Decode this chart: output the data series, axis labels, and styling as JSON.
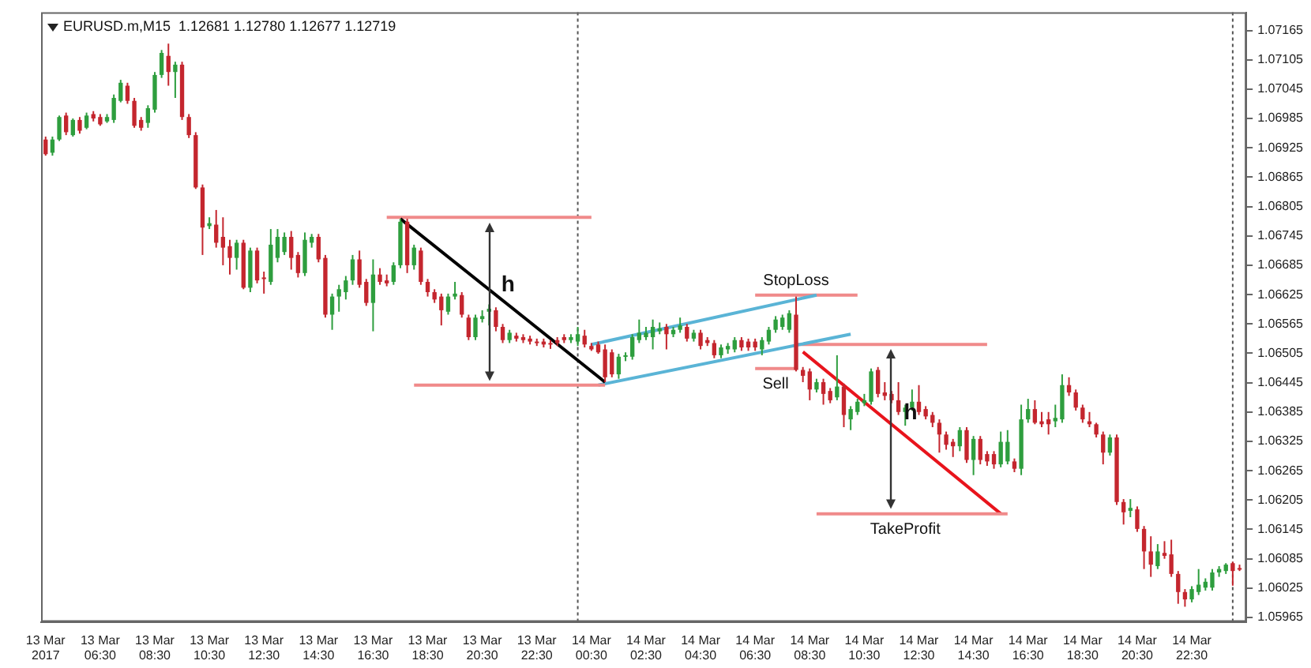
{
  "chart_data": {
    "type": "candlestick",
    "title": "EURUSD.m,M15  1.12681 1.12780 1.12677 1.12719",
    "x": [
      "2017-03-13T04:30",
      "2017-03-13T04:45",
      "2017-03-13T05:00",
      "2017-03-13T05:15",
      "2017-03-13T05:30",
      "2017-03-13T05:45",
      "2017-03-13T06:00",
      "2017-03-13T06:15",
      "2017-03-13T06:30",
      "2017-03-13T06:45",
      "2017-03-13T07:00",
      "2017-03-13T07:15",
      "2017-03-13T07:30",
      "2017-03-13T07:45",
      "2017-03-13T08:00",
      "2017-03-13T08:15",
      "2017-03-13T08:30",
      "2017-03-13T08:45",
      "2017-03-13T09:00",
      "2017-03-13T09:15",
      "2017-03-13T09:30",
      "2017-03-13T09:45",
      "2017-03-13T10:00",
      "2017-03-13T10:15",
      "2017-03-13T10:30",
      "2017-03-13T10:45",
      "2017-03-13T11:00",
      "2017-03-13T11:15",
      "2017-03-13T11:30",
      "2017-03-13T11:45",
      "2017-03-13T12:00",
      "2017-03-13T12:15",
      "2017-03-13T12:30",
      "2017-03-13T12:45",
      "2017-03-13T13:00",
      "2017-03-13T13:15",
      "2017-03-13T13:30",
      "2017-03-13T13:45",
      "2017-03-13T14:00",
      "2017-03-13T14:15",
      "2017-03-13T14:30",
      "2017-03-13T14:45",
      "2017-03-13T15:00",
      "2017-03-13T15:15",
      "2017-03-13T15:30",
      "2017-03-13T15:45",
      "2017-03-13T16:00",
      "2017-03-13T16:15",
      "2017-03-13T16:30",
      "2017-03-13T16:45",
      "2017-03-13T17:00",
      "2017-03-13T17:15",
      "2017-03-13T17:30",
      "2017-03-13T17:45",
      "2017-03-13T18:00",
      "2017-03-13T18:15",
      "2017-03-13T18:30",
      "2017-03-13T18:45",
      "2017-03-13T19:00",
      "2017-03-13T19:15",
      "2017-03-13T19:30",
      "2017-03-13T19:45",
      "2017-03-13T20:00",
      "2017-03-13T20:15",
      "2017-03-13T20:30",
      "2017-03-13T20:45",
      "2017-03-13T21:00",
      "2017-03-13T21:15",
      "2017-03-13T21:30",
      "2017-03-13T21:45",
      "2017-03-13T22:00",
      "2017-03-13T22:15",
      "2017-03-13T22:30",
      "2017-03-13T22:45",
      "2017-03-13T23:00",
      "2017-03-13T23:15",
      "2017-03-13T23:30",
      "2017-03-13T23:45",
      "2017-03-14T00:00",
      "2017-03-14T00:15",
      "2017-03-14T00:30",
      "2017-03-14T00:45",
      "2017-03-14T01:00",
      "2017-03-14T01:15",
      "2017-03-14T01:30",
      "2017-03-14T01:45",
      "2017-03-14T02:00",
      "2017-03-14T02:15",
      "2017-03-14T02:30",
      "2017-03-14T02:45",
      "2017-03-14T03:00",
      "2017-03-14T03:15",
      "2017-03-14T03:30",
      "2017-03-14T03:45",
      "2017-03-14T04:00",
      "2017-03-14T04:15",
      "2017-03-14T04:30",
      "2017-03-14T04:45",
      "2017-03-14T05:00",
      "2017-03-14T05:15",
      "2017-03-14T05:30",
      "2017-03-14T05:45",
      "2017-03-14T06:00",
      "2017-03-14T06:15",
      "2017-03-14T06:30",
      "2017-03-14T06:45",
      "2017-03-14T07:00",
      "2017-03-14T07:15",
      "2017-03-14T07:30",
      "2017-03-14T07:45",
      "2017-03-14T08:00",
      "2017-03-14T08:15",
      "2017-03-14T08:30",
      "2017-03-14T08:45",
      "2017-03-14T09:00",
      "2017-03-14T09:15",
      "2017-03-14T09:30",
      "2017-03-14T09:45",
      "2017-03-14T10:00",
      "2017-03-14T10:15",
      "2017-03-14T10:30",
      "2017-03-14T10:45",
      "2017-03-14T11:00",
      "2017-03-14T11:15",
      "2017-03-14T11:30",
      "2017-03-14T11:45",
      "2017-03-14T12:00",
      "2017-03-14T12:15",
      "2017-03-14T12:30",
      "2017-03-14T12:45",
      "2017-03-14T13:00",
      "2017-03-14T13:15",
      "2017-03-14T13:30",
      "2017-03-14T13:45",
      "2017-03-14T14:00",
      "2017-03-14T14:15",
      "2017-03-14T14:30",
      "2017-03-14T14:45",
      "2017-03-14T15:00",
      "2017-03-14T15:15",
      "2017-03-14T15:30",
      "2017-03-14T15:45",
      "2017-03-14T16:00",
      "2017-03-14T16:15",
      "2017-03-14T16:30",
      "2017-03-14T16:45",
      "2017-03-14T17:00",
      "2017-03-14T17:15",
      "2017-03-14T17:30",
      "2017-03-14T17:45",
      "2017-03-14T18:00",
      "2017-03-14T18:15",
      "2017-03-14T18:30",
      "2017-03-14T18:45",
      "2017-03-14T19:00",
      "2017-03-14T19:15",
      "2017-03-14T19:30",
      "2017-03-14T19:45",
      "2017-03-14T20:00",
      "2017-03-14T20:15",
      "2017-03-14T20:30",
      "2017-03-14T20:45",
      "2017-03-14T21:00",
      "2017-03-14T21:15",
      "2017-03-14T21:30",
      "2017-03-14T21:45",
      "2017-03-14T22:00",
      "2017-03-14T22:15",
      "2017-03-14T22:30",
      "2017-03-14T22:45",
      "2017-03-14T23:00",
      "2017-03-14T23:15",
      "2017-03-14T23:30",
      "2017-03-14T23:45",
      "2017-03-15T00:00",
      "2017-03-15T00:15"
    ],
    "xlim": [
      "2017-03-13T04:20",
      "2017-03-15T00:30"
    ],
    "xticks": [
      {
        "value": "2017-03-13T04:30",
        "label": "13 Mar 2017"
      },
      {
        "value": "2017-03-13T06:30",
        "label": "13 Mar 06:30"
      },
      {
        "value": "2017-03-13T08:30",
        "label": "13 Mar 08:30"
      },
      {
        "value": "2017-03-13T10:30",
        "label": "13 Mar 10:30"
      },
      {
        "value": "2017-03-13T12:30",
        "label": "13 Mar 12:30"
      },
      {
        "value": "2017-03-13T14:30",
        "label": "13 Mar 14:30"
      },
      {
        "value": "2017-03-13T16:30",
        "label": "13 Mar 16:30"
      },
      {
        "value": "2017-03-13T18:30",
        "label": "13 Mar 18:30"
      },
      {
        "value": "2017-03-13T20:30",
        "label": "13 Mar 20:30"
      },
      {
        "value": "2017-03-13T22:30",
        "label": "13 Mar 22:30"
      },
      {
        "value": "2017-03-14T00:30",
        "label": "14 Mar 00:30"
      },
      {
        "value": "2017-03-14T02:30",
        "label": "14 Mar 02:30"
      },
      {
        "value": "2017-03-14T04:30",
        "label": "14 Mar 04:30"
      },
      {
        "value": "2017-03-14T06:30",
        "label": "14 Mar 06:30"
      },
      {
        "value": "2017-03-14T08:30",
        "label": "14 Mar 08:30"
      },
      {
        "value": "2017-03-14T10:30",
        "label": "14 Mar 10:30"
      },
      {
        "value": "2017-03-14T12:30",
        "label": "14 Mar 12:30"
      },
      {
        "value": "2017-03-14T14:30",
        "label": "14 Mar 14:30"
      },
      {
        "value": "2017-03-14T16:30",
        "label": "14 Mar 16:30"
      },
      {
        "value": "2017-03-14T18:30",
        "label": "14 Mar 18:30"
      },
      {
        "value": "2017-03-14T20:30",
        "label": "14 Mar 20:30"
      },
      {
        "value": "2017-03-14T22:30",
        "label": "14 Mar 22:30"
      }
    ],
    "ylim": [
      1.05956,
      1.07202
    ],
    "yticks": [
      1.07165,
      1.07105,
      1.07045,
      1.06985,
      1.06925,
      1.06865,
      1.06805,
      1.06745,
      1.06685,
      1.06625,
      1.06565,
      1.06505,
      1.06445,
      1.06385,
      1.06325,
      1.06265,
      1.06205,
      1.06145,
      1.06085,
      1.06025,
      1.05965
    ],
    "series": [
      {
        "type": "candlestick",
        "ohlc": [
          [
            1.06942,
            1.06948,
            1.06909,
            1.06912
          ],
          [
            1.06915,
            1.06948,
            1.06909,
            1.06942
          ],
          [
            1.06942,
            1.06991,
            1.06939,
            1.06988
          ],
          [
            1.06991,
            1.06997,
            1.06951,
            1.06957
          ],
          [
            1.06951,
            1.06985,
            1.06948,
            1.06982
          ],
          [
            1.06982,
            1.06988,
            1.06954,
            1.0696
          ],
          [
            1.06966,
            1.06997,
            1.06963,
            1.06991
          ],
          [
            1.06994,
            1.07,
            1.06979,
            1.06985
          ],
          [
            1.06988,
            1.06994,
            1.0697,
            1.06973
          ],
          [
            1.06979,
            1.06994,
            1.06976,
            1.06988
          ],
          [
            1.06982,
            1.07034,
            1.06976,
            1.07027
          ],
          [
            1.07021,
            1.07064,
            1.07018,
            1.07058
          ],
          [
            1.07052,
            1.07058,
            1.07015,
            1.07021
          ],
          [
            1.07021,
            1.07027,
            1.06966,
            1.0697
          ],
          [
            1.06982,
            1.06988,
            1.0696,
            1.06966
          ],
          [
            1.06976,
            1.07012,
            1.06966,
            1.07006
          ],
          [
            1.07003,
            1.0708,
            1.06997,
            1.07074
          ],
          [
            1.07074,
            1.07125,
            1.07068,
            1.07119
          ],
          [
            1.07113,
            1.07138,
            1.07052,
            1.0708
          ],
          [
            1.0708,
            1.07101,
            1.07027,
            1.07095
          ],
          [
            1.07095,
            1.07101,
            1.06982,
            1.06988
          ],
          [
            1.06988,
            1.06994,
            1.06945,
            1.06951
          ],
          [
            1.06951,
            1.06957,
            1.06841,
            1.06844
          ],
          [
            1.06844,
            1.0685,
            1.06706,
            1.06762
          ],
          [
            1.06765,
            1.06783,
            1.06759,
            1.06771
          ],
          [
            1.06768,
            1.06798,
            1.06721,
            1.06731
          ],
          [
            1.06743,
            1.06783,
            1.06685,
            1.06721
          ],
          [
            1.06724,
            1.06737,
            1.06666,
            1.067
          ],
          [
            1.067,
            1.06737,
            1.06676,
            1.06731
          ],
          [
            1.06731,
            1.06737,
            1.06636,
            1.06639
          ],
          [
            1.06639,
            1.06721,
            1.0663,
            1.06715
          ],
          [
            1.06715,
            1.06721,
            1.06648,
            1.06654
          ],
          [
            1.0666,
            1.06672,
            1.06627,
            1.06657
          ],
          [
            1.06651,
            1.06759,
            1.06645,
            1.06727
          ],
          [
            1.067,
            1.06759,
            1.06691,
            1.06743
          ],
          [
            1.06712,
            1.06752,
            1.06706,
            1.06743
          ],
          [
            1.06743,
            1.06755,
            1.06676,
            1.067
          ],
          [
            1.06706,
            1.06712,
            1.0666,
            1.06669
          ],
          [
            1.06669,
            1.06752,
            1.06663,
            1.06737
          ],
          [
            1.06731,
            1.06749,
            1.06721,
            1.06743
          ],
          [
            1.06743,
            1.06749,
            1.06691,
            1.06697
          ],
          [
            1.067,
            1.06706,
            1.06578,
            1.06584
          ],
          [
            1.06584,
            1.06627,
            1.06553,
            1.06621
          ],
          [
            1.06621,
            1.06645,
            1.0659,
            1.06636
          ],
          [
            1.0663,
            1.06663,
            1.06615,
            1.06654
          ],
          [
            1.06654,
            1.06706,
            1.06645,
            1.06697
          ],
          [
            1.06697,
            1.06715,
            1.06639,
            1.06645
          ],
          [
            1.06651,
            1.06657,
            1.06602,
            1.06608
          ],
          [
            1.06608,
            1.06697,
            1.0655,
            1.06666
          ],
          [
            1.06666,
            1.06679,
            1.06645,
            1.06651
          ],
          [
            1.06654,
            1.06666,
            1.06642,
            1.06648
          ],
          [
            1.06651,
            1.06691,
            1.06645,
            1.06685
          ],
          [
            1.06685,
            1.0678,
            1.06679,
            1.06774
          ],
          [
            1.06774,
            1.0678,
            1.06669,
            1.06685
          ],
          [
            1.06685,
            1.06727,
            1.06676,
            1.06721
          ],
          [
            1.06715,
            1.06721,
            1.06645,
            1.06651
          ],
          [
            1.06651,
            1.06657,
            1.06621,
            1.0663
          ],
          [
            1.0663,
            1.06636,
            1.06608,
            1.06615
          ],
          [
            1.06621,
            1.06627,
            1.06562,
            1.06593
          ],
          [
            1.0659,
            1.06627,
            1.06584,
            1.06621
          ],
          [
            1.06621,
            1.06651,
            1.06615,
            1.06627
          ],
          [
            1.06624,
            1.0663,
            1.06578,
            1.06584
          ],
          [
            1.06578,
            1.06584,
            1.06532,
            1.06538
          ],
          [
            1.06538,
            1.06584,
            1.06532,
            1.06578
          ],
          [
            1.06575,
            1.06593,
            1.06568,
            1.06581
          ],
          [
            1.0659,
            1.06605,
            1.06562,
            1.06596
          ],
          [
            1.06593,
            1.06599,
            1.0655,
            1.06559
          ],
          [
            1.06559,
            1.06565,
            1.06526,
            1.06532
          ],
          [
            1.06532,
            1.06553,
            1.06526,
            1.06547
          ],
          [
            1.06541,
            1.06547,
            1.06529,
            1.06535
          ],
          [
            1.06538,
            1.06544,
            1.06526,
            1.06532
          ],
          [
            1.06535,
            1.06541,
            1.06523,
            1.06529
          ],
          [
            1.06529,
            1.06535,
            1.0652,
            1.06526
          ],
          [
            1.06529,
            1.06535,
            1.06517,
            1.06523
          ],
          [
            1.06526,
            1.06532,
            1.06514,
            1.06523
          ],
          [
            1.06532,
            1.06538,
            1.0652,
            1.06526
          ],
          [
            1.06538,
            1.06544,
            1.06526,
            1.06532
          ],
          [
            1.06532,
            1.06544,
            1.06526,
            1.06538
          ],
          [
            1.06529,
            1.06559,
            1.0652,
            1.06544
          ],
          [
            1.06541,
            1.06553,
            1.06517,
            1.06523
          ],
          [
            1.0652,
            1.06526,
            1.0651,
            1.06513
          ],
          [
            1.06523,
            1.06529,
            1.06504,
            1.06507
          ],
          [
            1.06513,
            1.06523,
            1.06446,
            1.06456
          ],
          [
            1.06507,
            1.06513,
            1.06456,
            1.06462
          ],
          [
            1.06462,
            1.06504,
            1.06453,
            1.06498
          ],
          [
            1.06498,
            1.06507,
            1.06489,
            1.06501
          ],
          [
            1.06498,
            1.06544,
            1.06492,
            1.06538
          ],
          [
            1.06532,
            1.06574,
            1.06526,
            1.06547
          ],
          [
            1.06538,
            1.06559,
            1.06532,
            1.06547
          ],
          [
            1.06538,
            1.06574,
            1.06513,
            1.06559
          ],
          [
            1.0655,
            1.06568,
            1.06544,
            1.06556
          ],
          [
            1.06559,
            1.06565,
            1.06513,
            1.06544
          ],
          [
            1.06544,
            1.06559,
            1.06538,
            1.06553
          ],
          [
            1.06553,
            1.06578,
            1.06547,
            1.06562
          ],
          [
            1.06559,
            1.06565,
            1.06529,
            1.06535
          ],
          [
            1.06535,
            1.06553,
            1.06529,
            1.06547
          ],
          [
            1.06547,
            1.06553,
            1.06513,
            1.0652
          ],
          [
            1.06532,
            1.06538,
            1.0652,
            1.06526
          ],
          [
            1.06526,
            1.06532,
            1.06495,
            1.06501
          ],
          [
            1.06501,
            1.06523,
            1.06495,
            1.06517
          ],
          [
            1.06513,
            1.06526,
            1.06504,
            1.0652
          ],
          [
            1.06513,
            1.06538,
            1.06507,
            1.06532
          ],
          [
            1.06532,
            1.06538,
            1.0651,
            1.06517
          ],
          [
            1.06529,
            1.06535,
            1.0651,
            1.06517
          ],
          [
            1.06529,
            1.06535,
            1.0651,
            1.06517
          ],
          [
            1.06513,
            1.06538,
            1.06501,
            1.06532
          ],
          [
            1.06529,
            1.06559,
            1.06523,
            1.06553
          ],
          [
            1.06553,
            1.06581,
            1.06547,
            1.06574
          ],
          [
            1.06559,
            1.06584,
            1.06553,
            1.06578
          ],
          [
            1.06553,
            1.06593,
            1.06547,
            1.06587
          ],
          [
            1.06584,
            1.06621,
            1.06468,
            1.06471
          ],
          [
            1.06471,
            1.06477,
            1.06446,
            1.06459
          ],
          [
            1.06468,
            1.06474,
            1.06409,
            1.06431
          ],
          [
            1.06431,
            1.06453,
            1.06425,
            1.06446
          ],
          [
            1.06446,
            1.06453,
            1.064,
            1.06422
          ],
          [
            1.06428,
            1.06434,
            1.06403,
            1.06409
          ],
          [
            1.06415,
            1.06501,
            1.06409,
            1.06437
          ],
          [
            1.06437,
            1.06443,
            1.06354,
            1.06379
          ],
          [
            1.0637,
            1.06397,
            1.06348,
            1.06391
          ],
          [
            1.06385,
            1.06412,
            1.06379,
            1.06406
          ],
          [
            1.06403,
            1.06422,
            1.06397,
            1.06409
          ],
          [
            1.06406,
            1.06474,
            1.064,
            1.06468
          ],
          [
            1.06471,
            1.06477,
            1.06415,
            1.06422
          ],
          [
            1.06425,
            1.06446,
            1.06409,
            1.06418
          ],
          [
            1.06422,
            1.06428,
            1.06403,
            1.06409
          ],
          [
            1.06409,
            1.06446,
            1.06379,
            1.06385
          ],
          [
            1.06385,
            1.064,
            1.06357,
            1.06394
          ],
          [
            1.06394,
            1.06431,
            1.06388,
            1.06406
          ],
          [
            1.06406,
            1.0644,
            1.06379,
            1.06385
          ],
          [
            1.06391,
            1.06397,
            1.0637,
            1.06376
          ],
          [
            1.06379,
            1.06385,
            1.06354,
            1.06363
          ],
          [
            1.06363,
            1.0637,
            1.06302,
            1.06339
          ],
          [
            1.06339,
            1.06345,
            1.06308,
            1.06318
          ],
          [
            1.06324,
            1.0633,
            1.06293,
            1.06315
          ],
          [
            1.06315,
            1.06354,
            1.06305,
            1.06348
          ],
          [
            1.06348,
            1.06354,
            1.06281,
            1.06287
          ],
          [
            1.06287,
            1.06336,
            1.06256,
            1.0633
          ],
          [
            1.0633,
            1.06336,
            1.06278,
            1.06287
          ],
          [
            1.06299,
            1.06305,
            1.06275,
            1.06284
          ],
          [
            1.06299,
            1.06305,
            1.06269,
            1.06278
          ],
          [
            1.06278,
            1.06345,
            1.06272,
            1.06324
          ],
          [
            1.06284,
            1.06348,
            1.06278,
            1.06324
          ],
          [
            1.06284,
            1.0629,
            1.06262,
            1.06269
          ],
          [
            1.06269,
            1.064,
            1.06256,
            1.0637
          ],
          [
            1.0637,
            1.06412,
            1.06363,
            1.06391
          ],
          [
            1.06391,
            1.06409,
            1.0636,
            1.06363
          ],
          [
            1.06366,
            1.06385,
            1.06354,
            1.0636
          ],
          [
            1.0637,
            1.06385,
            1.06339,
            1.0636
          ],
          [
            1.06366,
            1.064,
            1.06354,
            1.06373
          ],
          [
            1.0637,
            1.06462,
            1.06363,
            1.0644
          ],
          [
            1.0644,
            1.06456,
            1.06418,
            1.06425
          ],
          [
            1.06425,
            1.06431,
            1.06388,
            1.06394
          ],
          [
            1.06394,
            1.064,
            1.06363,
            1.0637
          ],
          [
            1.06366,
            1.06385,
            1.06354,
            1.0636
          ],
          [
            1.0636,
            1.06363,
            1.06333,
            1.06339
          ],
          [
            1.06339,
            1.06345,
            1.06278,
            1.06302
          ],
          [
            1.06302,
            1.06339,
            1.06296,
            1.06333
          ],
          [
            1.06333,
            1.06339,
            1.06195,
            1.06201
          ],
          [
            1.06201,
            1.06207,
            1.06155,
            1.0618
          ],
          [
            1.06183,
            1.06207,
            1.0617,
            1.06189
          ],
          [
            1.06186,
            1.06192,
            1.0614,
            1.06146
          ],
          [
            1.06146,
            1.06152,
            1.06064,
            1.061
          ],
          [
            1.061,
            1.06131,
            1.06048,
            1.06073
          ],
          [
            1.0607,
            1.06115,
            1.06064,
            1.061
          ],
          [
            1.06097,
            1.06121,
            1.06085,
            1.06091
          ],
          [
            1.06094,
            1.06124,
            1.06048,
            1.06054
          ],
          [
            1.06054,
            1.0606,
            1.05993,
            1.06017
          ],
          [
            1.06017,
            1.06023,
            1.05987,
            1.06002
          ],
          [
            1.06002,
            1.06029,
            1.05996,
            1.06023
          ],
          [
            1.06017,
            1.06064,
            1.06011,
            1.06032
          ],
          [
            1.06026,
            1.06045,
            1.0602,
            1.06038
          ],
          [
            1.06026,
            1.06064,
            1.0602,
            1.06057
          ],
          [
            1.06057,
            1.0607,
            1.06048,
            1.06064
          ],
          [
            1.0606,
            1.06076,
            1.06054,
            1.06073
          ],
          [
            1.06076,
            1.06079,
            1.0603,
            1.0606
          ],
          [
            1.06066,
            1.06073,
            1.0606,
            1.06063
          ]
        ],
        "colors": [
          "#c4262e",
          "#2e9e3e",
          "#2e9e3e",
          "#c4262e",
          "#2e9e3e",
          "#c4262e",
          "#2e9e3e",
          "#c4262e",
          "#c4262e",
          "#2e9e3e",
          "#2e9e3e",
          "#2e9e3e",
          "#c4262e",
          "#c4262e",
          "#c4262e",
          "#2e9e3e",
          "#2e9e3e",
          "#2e9e3e",
          "#c4262e",
          "#2e9e3e",
          "#c4262e",
          "#c4262e",
          "#c4262e",
          "#c4262e",
          "#2e9e3e",
          "#c4262e",
          "#c4262e",
          "#c4262e",
          "#2e9e3e",
          "#c4262e",
          "#2e9e3e",
          "#c4262e",
          "#c4262e",
          "#2e9e3e",
          "#2e9e3e",
          "#2e9e3e",
          "#c4262e",
          "#c4262e",
          "#2e9e3e",
          "#2e9e3e",
          "#c4262e",
          "#c4262e",
          "#2e9e3e",
          "#2e9e3e",
          "#2e9e3e",
          "#2e9e3e",
          "#c4262e",
          "#c4262e",
          "#2e9e3e",
          "#c4262e",
          "#c4262e",
          "#2e9e3e",
          "#2e9e3e",
          "#c4262e",
          "#2e9e3e",
          "#c4262e",
          "#c4262e",
          "#c4262e",
          "#c4262e",
          "#2e9e3e",
          "#2e9e3e",
          "#c4262e",
          "#c4262e",
          "#2e9e3e",
          "#2e9e3e",
          "#2e9e3e",
          "#c4262e",
          "#c4262e",
          "#2e9e3e",
          "#c4262e",
          "#c4262e",
          "#c4262e",
          "#c4262e",
          "#c4262e",
          "#c4262e",
          "#c4262e",
          "#c4262e",
          "#2e9e3e",
          "#2e9e3e",
          "#c4262e",
          "#c4262e",
          "#c4262e",
          "#c4262e",
          "#c4262e",
          "#2e9e3e",
          "#2e9e3e",
          "#2e9e3e",
          "#2e9e3e",
          "#2e9e3e",
          "#2e9e3e",
          "#2e9e3e",
          "#c4262e",
          "#2e9e3e",
          "#2e9e3e",
          "#c4262e",
          "#2e9e3e",
          "#c4262e",
          "#c4262e",
          "#c4262e",
          "#2e9e3e",
          "#2e9e3e",
          "#2e9e3e",
          "#c4262e",
          "#c4262e",
          "#c4262e",
          "#2e9e3e",
          "#2e9e3e",
          "#2e9e3e",
          "#2e9e3e",
          "#2e9e3e",
          "#c4262e",
          "#c4262e",
          "#c4262e",
          "#2e9e3e",
          "#c4262e",
          "#c4262e",
          "#2e9e3e",
          "#c4262e",
          "#2e9e3e",
          "#2e9e3e",
          "#2e9e3e",
          "#2e9e3e",
          "#c4262e",
          "#c4262e",
          "#c4262e",
          "#c4262e",
          "#2e9e3e",
          "#2e9e3e",
          "#c4262e",
          "#c4262e",
          "#c4262e",
          "#c4262e",
          "#c4262e",
          "#c4262e",
          "#2e9e3e",
          "#c4262e",
          "#2e9e3e",
          "#c4262e",
          "#c4262e",
          "#c4262e",
          "#2e9e3e",
          "#2e9e3e",
          "#c4262e",
          "#2e9e3e",
          "#2e9e3e",
          "#c4262e",
          "#c4262e",
          "#c4262e",
          "#2e9e3e",
          "#2e9e3e",
          "#c4262e",
          "#c4262e",
          "#c4262e",
          "#c4262e",
          "#c4262e",
          "#c4262e",
          "#2e9e3e",
          "#c4262e",
          "#c4262e",
          "#2e9e3e",
          "#c4262e",
          "#c4262e",
          "#c4262e",
          "#2e9e3e",
          "#c4262e",
          "#c4262e",
          "#c4262e",
          "#c4262e",
          "#2e9e3e",
          "#2e9e3e",
          "#2e9e3e",
          "#2e9e3e",
          "#2e9e3e",
          "#2e9e3e",
          "#c4262e",
          "#c4262e"
        ]
      },
      {
        "type": "line",
        "color": "#000000",
        "x": [
          "2017-03-13T17:30",
          "2017-03-14T01:00"
        ],
        "values": [
          1.0678,
          1.06446
        ]
      },
      {
        "type": "line",
        "color": "#f08a8a",
        "x": [
          "2017-03-13T17:00",
          "2017-03-14T00:30"
        ],
        "values": [
          1.06783,
          1.06783
        ]
      },
      {
        "type": "line",
        "color": "#f08a8a",
        "x": [
          "2017-03-13T18:00",
          "2017-03-14T01:00"
        ],
        "values": [
          1.0644,
          1.0644
        ]
      },
      {
        "type": "line",
        "color": "#5ab4d6",
        "x": [
          "2017-03-14T00:45",
          "2017-03-14T10:00"
        ],
        "values": [
          1.0644,
          1.06544
        ]
      },
      {
        "type": "line",
        "color": "#5ab4d6",
        "x": [
          "2017-03-14T00:30",
          "2017-03-14T08:45"
        ],
        "values": [
          1.06523,
          1.06624
        ]
      },
      {
        "type": "line",
        "color": "#f08a8a",
        "x": [
          "2017-03-14T06:30",
          "2017-03-14T10:15"
        ],
        "values": [
          1.06624,
          1.06624
        ]
      },
      {
        "type": "line",
        "color": "#f08a8a",
        "x": [
          "2017-03-14T06:30",
          "2017-03-14T08:00"
        ],
        "values": [
          1.06474,
          1.06474
        ]
      },
      {
        "type": "line",
        "color": "#f08a8a",
        "x": [
          "2017-03-14T08:00",
          "2017-03-14T15:00"
        ],
        "values": [
          1.06523,
          1.06523
        ]
      },
      {
        "type": "line",
        "color": "#f08a8a",
        "x": [
          "2017-03-14T08:45",
          "2017-03-14T15:45"
        ],
        "values": [
          1.06177,
          1.06177
        ]
      },
      {
        "type": "line",
        "color": "#e8141c",
        "x": [
          "2017-03-14T08:15",
          "2017-03-14T15:30"
        ],
        "values": [
          1.06508,
          1.06177
        ]
      }
    ],
    "ref_lines": [
      {
        "axis": "x",
        "value": "2017-03-14T00:00",
        "color": "#555555",
        "line_style": "dotted"
      },
      {
        "axis": "x",
        "value": "2017-03-15T00:00",
        "color": "#555555",
        "line_style": "dotted"
      }
    ],
    "annotations": [
      "h",
      "h",
      {
        "text": "StopLoss",
        "x": "2017-03-14T08:00",
        "y": 1.06624
      },
      {
        "text": "Sell",
        "x": "2017-03-14T07:15",
        "y": 1.06474
      },
      {
        "text": "TakeProfit",
        "x": "2017-03-14T12:00",
        "y": 1.06177
      }
    ]
  }
}
